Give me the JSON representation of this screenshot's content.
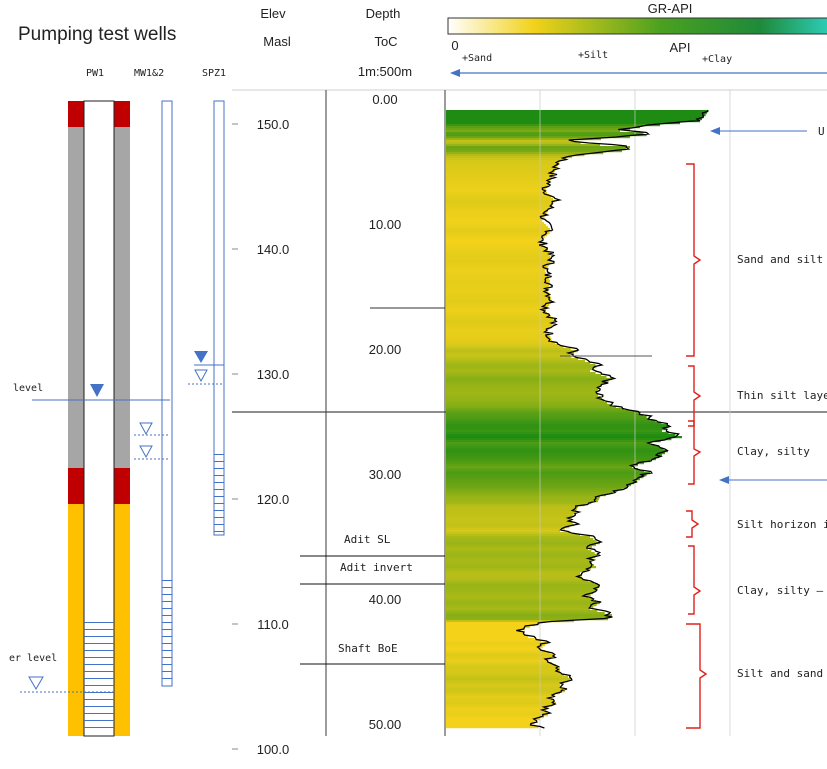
{
  "title": "Pumping test wells",
  "wells": {
    "pw1": "PW1",
    "mw": "MW1&2",
    "spz": "SPZ1"
  },
  "side_labels": {
    "level_upper": "level",
    "level_lower": "er level"
  },
  "columns": {
    "elev": {
      "line1": "Elev",
      "line2": "Masl"
    },
    "depth": {
      "line1": "Depth",
      "line2": "ToC",
      "line3": "1m:500m"
    }
  },
  "gr": {
    "header": "GR-API",
    "api_label": "API",
    "zero_label": "0",
    "sand_label": "+Sand",
    "silt_label": "+Silt",
    "clay_label": "+Clay",
    "colors": {
      "sand": "#f5d21a",
      "clay": "#1e8c12",
      "scale_end": "#2fd6c8"
    }
  },
  "elev_ticks": [
    "150.0",
    "140.0",
    "130.0",
    "120.0",
    "110.0",
    "100.0"
  ],
  "depth_ticks": [
    "0.00",
    "10.00",
    "20.00",
    "30.00",
    "40.00",
    "50.00"
  ],
  "markers": {
    "adit_sl": "Adit SL",
    "adit_invert": "Adit invert",
    "shaft_boe": "Shaft BoE"
  },
  "zones": {
    "z1": "Sand and silt",
    "z2": "Thin silt layer",
    "z3": "Clay, silty",
    "z4": "Silt horizon id",
    "z5": "Clay, silty – s",
    "z6": "Silt and sand"
  },
  "arrow_label": "U",
  "colors": {
    "casing_red": "#c00000",
    "casing_grey": "#a6a6a6",
    "casing_orange": "#ffc000",
    "blue": "#4472c4",
    "bracket": "#e0201c"
  }
}
